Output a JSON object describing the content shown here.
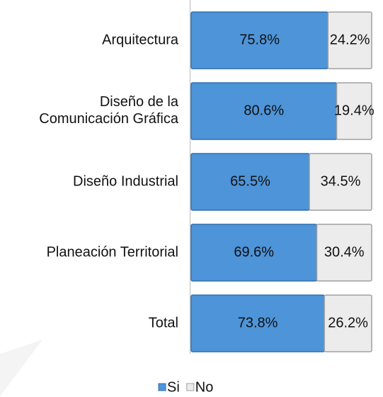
{
  "chart_data": {
    "type": "stacked-bar-horizontal",
    "categories": [
      "Arquitectura",
      "Diseño de la\nComunicación Gráfica",
      "Diseño Industrial",
      "Planeación Territorial",
      "Total"
    ],
    "series": [
      {
        "name": "Si",
        "color": "#4e94d8",
        "values": [
          75.8,
          80.6,
          65.5,
          69.6,
          73.8
        ],
        "value_labels": [
          "75.8%",
          "80.6%",
          "65.5%",
          "69.6%",
          "73.8%"
        ]
      },
      {
        "name": "No",
        "color": "#ececec",
        "values": [
          24.2,
          19.4,
          34.5,
          30.4,
          26.2
        ],
        "value_labels": [
          "24.2%",
          "19.4%",
          "34.5%",
          "30.4%",
          "26.2%"
        ]
      }
    ],
    "legend": "bottom"
  }
}
